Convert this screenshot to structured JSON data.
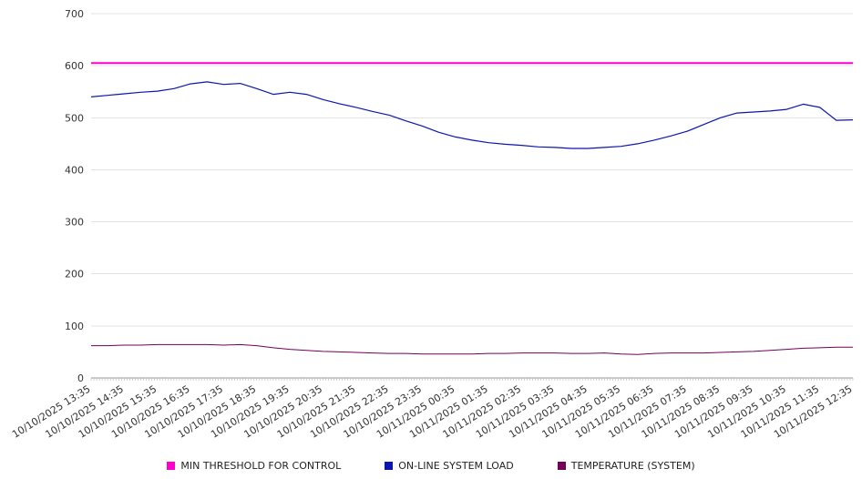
{
  "chart_data": {
    "type": "line",
    "title": "",
    "xlabel": "",
    "ylabel": "",
    "ylim": [
      0,
      700
    ],
    "y_ticks": [
      0,
      100,
      200,
      300,
      400,
      500,
      600,
      700
    ],
    "grid": "horizontal",
    "legend_position": "bottom",
    "x_labels": [
      "10/10/2025 13:35",
      "10/10/2025 14:35",
      "10/10/2025 15:35",
      "10/10/2025 16:35",
      "10/10/2025 17:35",
      "10/10/2025 18:35",
      "10/10/2025 19:35",
      "10/10/2025 20:35",
      "10/10/2025 21:35",
      "10/10/2025 22:35",
      "10/10/2025 23:35",
      "10/11/2025 00:35",
      "10/11/2025 01:35",
      "10/11/2025 02:35",
      "10/11/2025 03:35",
      "10/11/2025 04:35",
      "10/11/2025 05:35",
      "10/11/2025 06:35",
      "10/11/2025 07:35",
      "10/11/2025 08:35",
      "10/11/2025 09:35",
      "10/11/2025 10:35",
      "10/11/2025 11:35",
      "10/11/2025 12:35"
    ],
    "series": [
      {
        "name": "MIN THRESHOLD FOR CONTROL",
        "color": "#ff00cc",
        "line_width": 2,
        "values": [
          605,
          605
        ]
      },
      {
        "name": "ON-LINE SYSTEM LOAD",
        "color": "#0b16b0",
        "line_width": 1.2,
        "values": [
          540,
          543,
          546,
          549,
          551,
          556,
          565,
          569,
          564,
          566,
          556,
          545,
          549,
          545,
          535,
          527,
          520,
          512,
          505,
          494,
          484,
          472,
          463,
          457,
          452,
          449,
          447,
          444,
          443,
          441,
          441,
          443,
          445,
          450,
          457,
          465,
          474,
          487,
          500,
          509,
          511,
          513,
          516,
          526,
          520,
          495,
          496
        ]
      },
      {
        "name": "TEMPERATURE (SYSTEM)",
        "color": "#730059",
        "line_width": 1,
        "values": [
          62,
          62,
          63,
          63,
          64,
          64,
          64,
          64,
          63,
          64,
          62,
          58,
          55,
          53,
          51,
          50,
          49,
          48,
          47,
          47,
          46,
          46,
          46,
          46,
          47,
          47,
          48,
          48,
          48,
          47,
          47,
          48,
          46,
          45,
          47,
          48,
          48,
          48,
          49,
          50,
          51,
          53,
          55,
          57,
          58,
          59,
          59
        ]
      }
    ]
  }
}
